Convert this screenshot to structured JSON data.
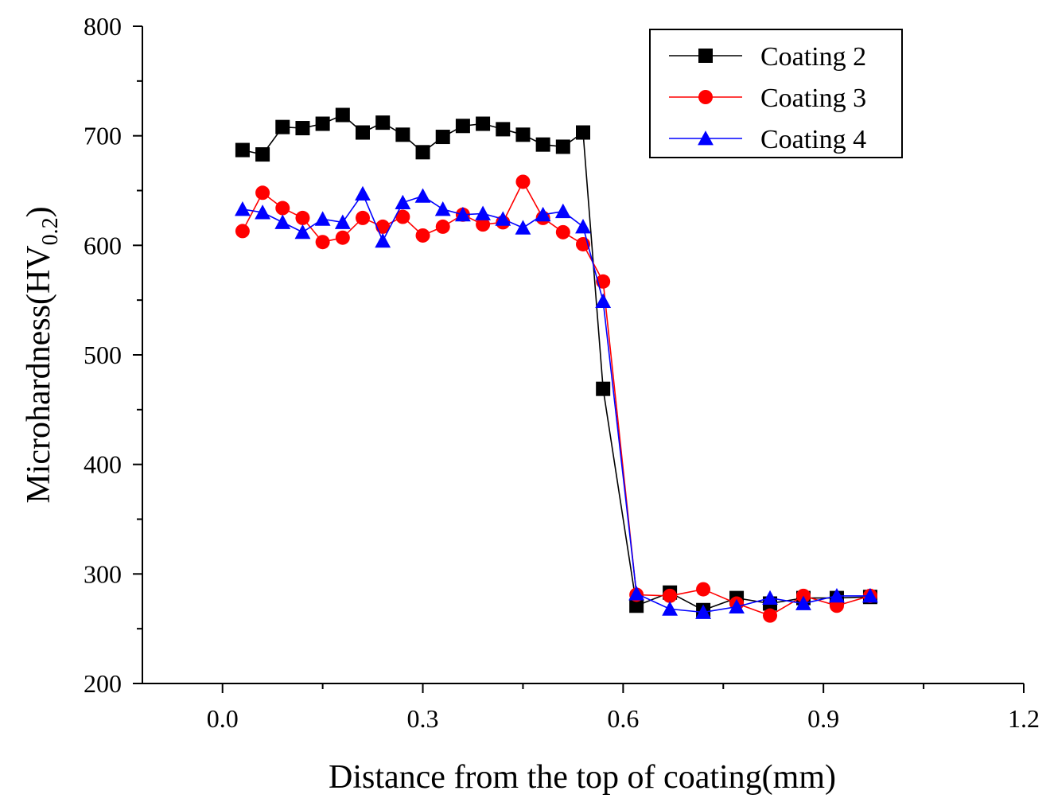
{
  "chart_data": {
    "type": "line",
    "xlabel": "Distance from the top of coating(mm)",
    "ylabel_main": "Microhardness(HV",
    "ylabel_sub": "0.2",
    "ylabel_close": ")",
    "xlim": [
      -0.12,
      1.2
    ],
    "ylim": [
      200,
      800
    ],
    "xticks": [
      0.0,
      0.3,
      0.6,
      0.9,
      1.2
    ],
    "xtick_labels": [
      "0.0",
      "0.3",
      "0.6",
      "0.9",
      "1.2"
    ],
    "yticks": [
      200,
      300,
      400,
      500,
      600,
      700,
      800
    ],
    "ytick_labels": [
      "200",
      "300",
      "400",
      "500",
      "600",
      "700",
      "800"
    ],
    "legend_position": "top-right",
    "series": [
      {
        "name": "Coating 2",
        "color": "#000000",
        "marker": "square",
        "x": [
          0.03,
          0.06,
          0.09,
          0.12,
          0.15,
          0.18,
          0.21,
          0.24,
          0.27,
          0.3,
          0.33,
          0.36,
          0.39,
          0.42,
          0.45,
          0.48,
          0.51,
          0.54,
          0.57,
          0.62,
          0.67,
          0.72,
          0.77,
          0.82,
          0.87,
          0.92,
          0.97
        ],
        "y": [
          687,
          683,
          708,
          707,
          711,
          719,
          703,
          712,
          701,
          685,
          699,
          709,
          711,
          706,
          701,
          692,
          690,
          703,
          469,
          271,
          283,
          267,
          278,
          273,
          278,
          278,
          279
        ]
      },
      {
        "name": "Coating 3",
        "color": "#ff0000",
        "marker": "circle",
        "x": [
          0.03,
          0.06,
          0.09,
          0.12,
          0.15,
          0.18,
          0.21,
          0.24,
          0.27,
          0.3,
          0.33,
          0.36,
          0.39,
          0.42,
          0.45,
          0.48,
          0.51,
          0.54,
          0.57,
          0.62,
          0.67,
          0.72,
          0.77,
          0.82,
          0.87,
          0.92,
          0.97
        ],
        "y": [
          613,
          648,
          634,
          625,
          603,
          607,
          625,
          617,
          626,
          609,
          617,
          628,
          619,
          621,
          658,
          625,
          612,
          601,
          567,
          281,
          280,
          286,
          273,
          262,
          280,
          271,
          280
        ]
      },
      {
        "name": "Coating 4",
        "color": "#0000ff",
        "marker": "triangle",
        "x": [
          0.03,
          0.06,
          0.09,
          0.12,
          0.15,
          0.18,
          0.21,
          0.24,
          0.27,
          0.3,
          0.33,
          0.36,
          0.39,
          0.42,
          0.45,
          0.48,
          0.51,
          0.54,
          0.57,
          0.62,
          0.67,
          0.72,
          0.77,
          0.82,
          0.87,
          0.92,
          0.97
        ],
        "y": [
          633,
          630,
          621,
          612,
          624,
          621,
          647,
          604,
          639,
          645,
          633,
          628,
          629,
          624,
          616,
          628,
          631,
          617,
          549,
          282,
          268,
          265,
          270,
          278,
          273,
          280,
          280
        ]
      }
    ]
  }
}
